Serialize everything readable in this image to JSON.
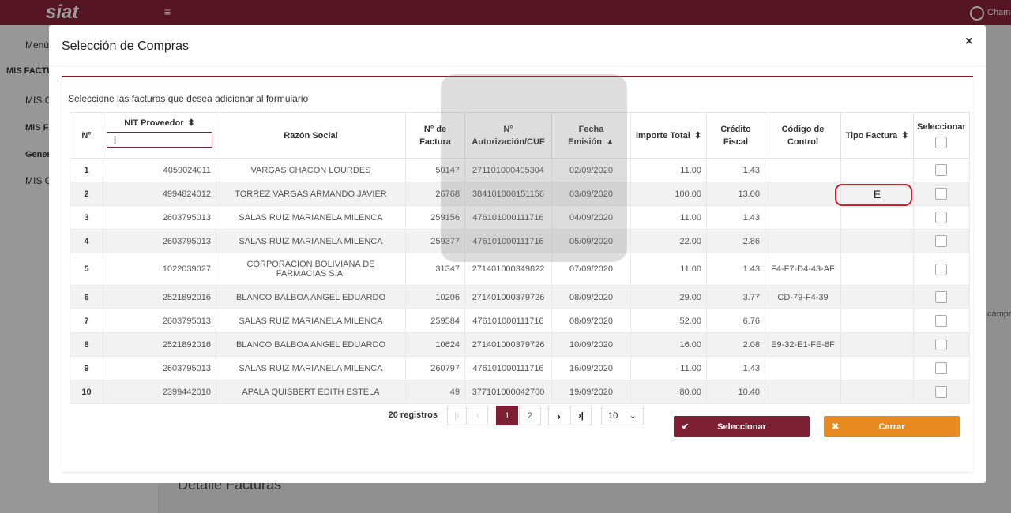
{
  "app": {
    "logo": "siat",
    "user": "Chamb",
    "sidebar": [
      "Menú",
      "MIS FACTUR",
      "MIS CO",
      "MIS F",
      "Gener",
      "MIS CO"
    ],
    "section": "Detalle Facturas",
    "side_text": "campo"
  },
  "modal": {
    "title": "Selección de Compras",
    "close": "×",
    "instruction": "Seleccione las facturas que desea adicionar al formulario",
    "table": {
      "headers": [
        "N°",
        "NIT Proveedor",
        "Razón Social",
        "N° de Factura",
        "N° Autorización/CUF",
        "Fecha Emisión",
        "Importe Total",
        "Crédito Fiscal",
        "Código de Control",
        "Tipo Factura",
        "Seleccionar"
      ],
      "rows": [
        [
          "1",
          "4059024011",
          "VARGAS CHACON LOURDES",
          "50147",
          "271101000405304",
          "02/09/2020",
          "11.00",
          "1.43",
          null,
          null
        ],
        [
          "2",
          "4994824012",
          "TORREZ VARGAS ARMANDO JAVIER",
          "26768",
          "384101000151156",
          "03/09/2020",
          "100.00",
          "13.00",
          null,
          "E"
        ],
        [
          "3",
          "2603795013",
          "SALAS RUIZ MARIANELA MILENCA",
          "259156",
          "476101000111716",
          "04/09/2020",
          "11.00",
          "1.43",
          null,
          null
        ],
        [
          "4",
          "2603795013",
          "SALAS RUIZ MARIANELA MILENCA",
          "259377",
          "476101000111716",
          "05/09/2020",
          "22.00",
          "2.86",
          null,
          null
        ],
        [
          "5",
          "1022039027",
          "CORPORACION BOLIVIANA DE FARMACIAS S.A.",
          "31347",
          "271401000349822",
          "07/09/2020",
          "11.00",
          "1.43",
          "F4-F7-D4-43-AF",
          null
        ],
        [
          "6",
          "2521892016",
          "BLANCO BALBOA ANGEL EDUARDO",
          "10206",
          "271401000379726",
          "08/09/2020",
          "29.00",
          "3.77",
          "CD-79-F4-39",
          null
        ],
        [
          "7",
          "2603795013",
          "SALAS RUIZ MARIANELA MILENCA",
          "259584",
          "476101000111716",
          "08/09/2020",
          "52.00",
          "6.76",
          null,
          null
        ],
        [
          "8",
          "2521892016",
          "BLANCO BALBOA ANGEL EDUARDO",
          "10624",
          "271401000379726",
          "10/09/2020",
          "16.00",
          "2.08",
          "E9-32-E1-FE-8F",
          null
        ],
        [
          "9",
          "2603795013",
          "SALAS RUIZ MARIANELA MILENCA",
          "260797",
          "476101000111716",
          "16/09/2020",
          "11.00",
          "1.43",
          null,
          null
        ],
        [
          "10",
          "2399442010",
          "APALA QUISBERT EDITH ESTELA",
          "49",
          "377101000042700",
          "19/09/2020",
          "80.00",
          "10.40",
          null,
          null
        ]
      ]
    },
    "pagination": {
      "total": "20 registros",
      "pages": [
        "1",
        "2"
      ],
      "page_size": "10"
    },
    "buttons": {
      "select": "Seleccionar",
      "close": "Cerrar"
    }
  }
}
